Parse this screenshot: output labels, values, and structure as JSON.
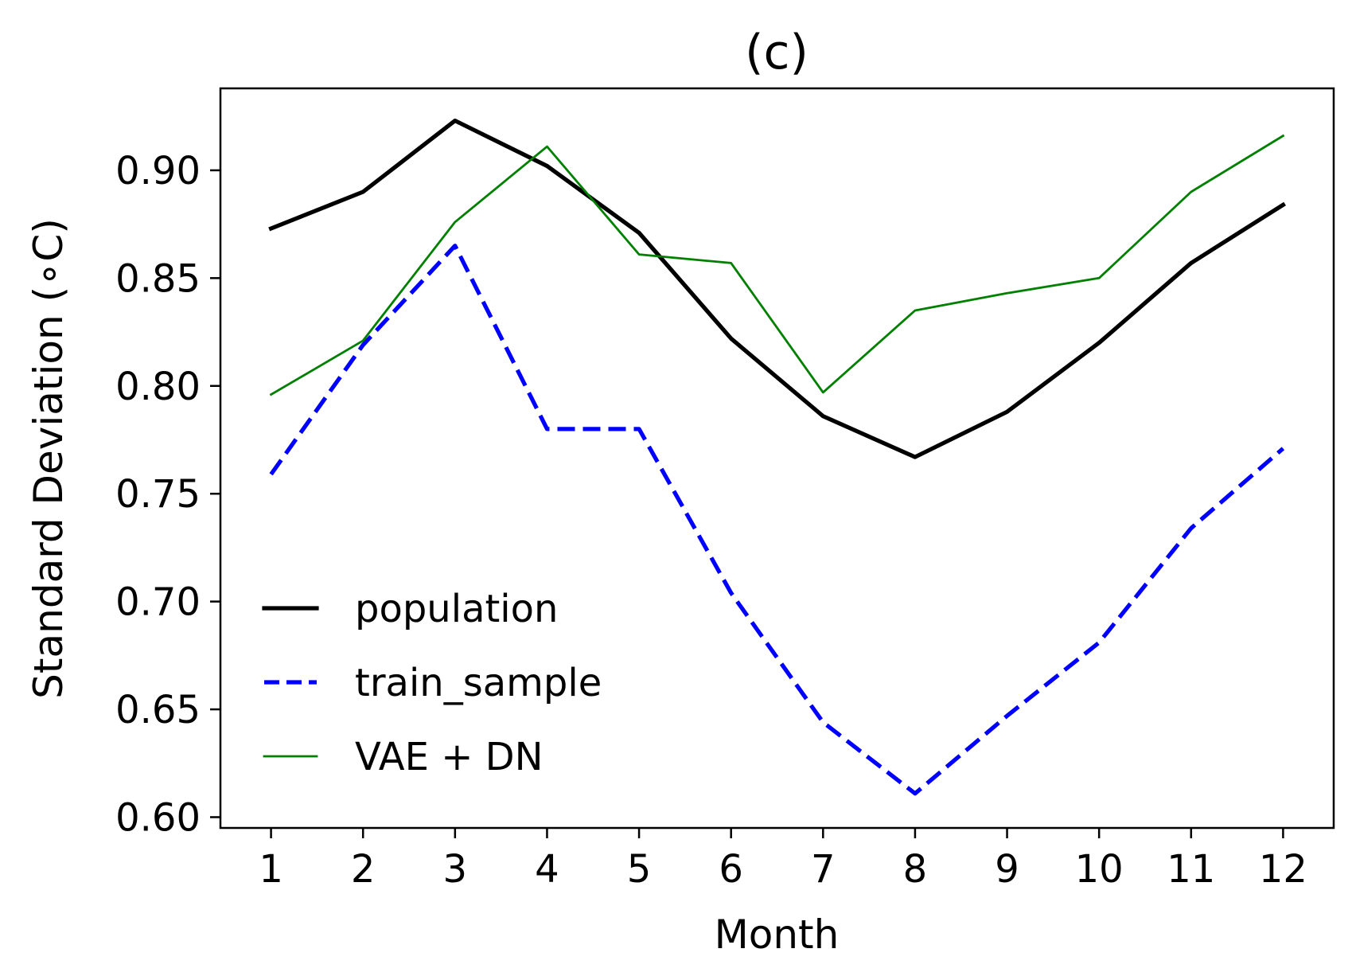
{
  "chart_data": {
    "type": "line",
    "title": "(c)",
    "xlabel": "Month",
    "ylabel": "Standard Deviation ($^\\circ$C)",
    "ylabel_display": "Standard Deviation (∘C)",
    "x": [
      1,
      2,
      3,
      4,
      5,
      6,
      7,
      8,
      9,
      10,
      11,
      12
    ],
    "xlim": [
      0.45,
      12.55
    ],
    "ylim": [
      0.595,
      0.938
    ],
    "xticks": [
      1,
      2,
      3,
      4,
      5,
      6,
      7,
      8,
      9,
      10,
      11,
      12
    ],
    "xtick_labels": [
      "1",
      "2",
      "3",
      "4",
      "5",
      "6",
      "7",
      "8",
      "9",
      "10",
      "11",
      "12"
    ],
    "yticks": [
      0.6,
      0.65,
      0.7,
      0.75,
      0.8,
      0.85,
      0.9
    ],
    "ytick_labels": [
      "0.60",
      "0.65",
      "0.70",
      "0.75",
      "0.80",
      "0.85",
      "0.90"
    ],
    "grid": false,
    "legend_position": "lower-left",
    "series": [
      {
        "name": "population",
        "color": "#000000",
        "style": "solid",
        "weight": "thick",
        "values": [
          0.873,
          0.89,
          0.923,
          0.902,
          0.871,
          0.822,
          0.786,
          0.767,
          0.788,
          0.82,
          0.857,
          0.884
        ]
      },
      {
        "name": "train_sample",
        "color": "#0000ff",
        "style": "dashed",
        "weight": "thick",
        "values": [
          0.759,
          0.819,
          0.865,
          0.78,
          0.78,
          0.704,
          0.644,
          0.611,
          0.647,
          0.681,
          0.734,
          0.771
        ]
      },
      {
        "name": "VAE + DN",
        "color": "#008000",
        "style": "solid",
        "weight": "thin",
        "values": [
          0.796,
          0.821,
          0.876,
          0.911,
          0.861,
          0.857,
          0.797,
          0.835,
          0.843,
          0.85,
          0.89,
          0.916
        ]
      }
    ]
  }
}
